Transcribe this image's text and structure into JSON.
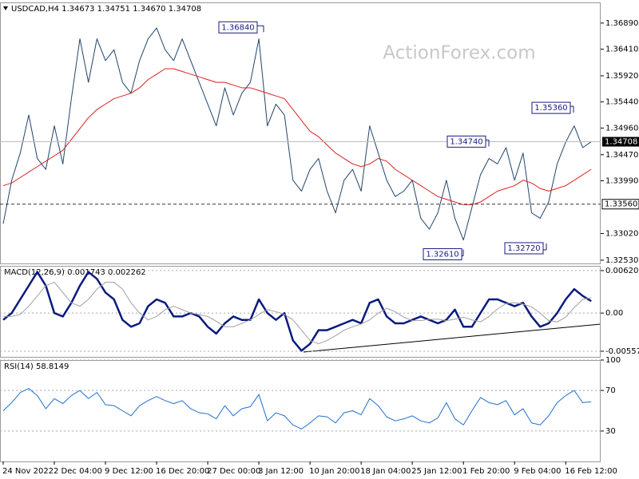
{
  "chart_data": [
    {
      "type": "line",
      "title": "USDCAD,H4  1.34673 1.34751 1.34670 1.34708",
      "watermark": "ActionForex.com",
      "categories": [
        "24 Nov 2022",
        null,
        null,
        null,
        null,
        null,
        "2 Dec 04:00",
        null,
        null,
        null,
        null,
        null,
        "9 Dec 12:00",
        null,
        null,
        null,
        null,
        null,
        "16 Dec 20:00",
        null,
        null,
        null,
        null,
        null,
        "27 Dec 00:00",
        null,
        null,
        null,
        null,
        null,
        "3 Jan 12:00",
        null,
        null,
        null,
        null,
        null,
        "10 Jan 20:00",
        null,
        null,
        null,
        null,
        null,
        "18 Jan 04:00",
        null,
        null,
        null,
        null,
        null,
        "25 Jan 12:00",
        null,
        null,
        null,
        null,
        null,
        "1 Feb 20:00",
        null,
        null,
        null,
        null,
        null,
        "9 Feb 04:00",
        null,
        null,
        null,
        null,
        null,
        "16 Feb 12:00",
        null,
        null,
        null
      ],
      "series": [
        {
          "name": "Close",
          "color": "#23456a",
          "values": [
            1.332,
            1.34,
            1.345,
            1.352,
            1.344,
            1.342,
            1.35,
            1.343,
            1.355,
            1.366,
            1.358,
            1.366,
            1.362,
            1.364,
            1.358,
            1.356,
            1.362,
            1.366,
            1.368,
            1.364,
            1.362,
            1.366,
            1.362,
            1.358,
            1.354,
            1.35,
            1.357,
            1.352,
            1.356,
            1.358,
            1.366,
            1.35,
            1.354,
            1.352,
            1.34,
            1.338,
            1.342,
            1.344,
            1.338,
            1.334,
            1.34,
            1.342,
            1.338,
            1.35,
            1.345,
            1.34,
            1.337,
            1.338,
            1.34,
            1.333,
            1.331,
            1.334,
            1.34,
            1.333,
            1.329,
            1.335,
            1.341,
            1.344,
            1.343,
            1.346,
            1.34,
            1.345,
            1.334,
            1.333,
            1.336,
            1.343,
            1.347,
            1.35,
            1.346,
            1.34708
          ]
        },
        {
          "name": "MA",
          "color": "#e02020",
          "values": [
            1.339,
            1.3395,
            1.3405,
            1.3415,
            1.3425,
            1.3435,
            1.3445,
            1.3455,
            1.3475,
            1.3495,
            1.3515,
            1.353,
            1.354,
            1.355,
            1.3555,
            1.356,
            1.357,
            1.3585,
            1.3595,
            1.3605,
            1.3605,
            1.36,
            1.3595,
            1.359,
            1.3585,
            1.358,
            1.358,
            1.3575,
            1.357,
            1.357,
            1.3565,
            1.356,
            1.3555,
            1.355,
            1.353,
            1.351,
            1.349,
            1.348,
            1.3465,
            1.345,
            1.344,
            1.343,
            1.3425,
            1.343,
            1.344,
            1.3435,
            1.342,
            1.341,
            1.34,
            1.339,
            1.338,
            1.337,
            1.3365,
            1.336,
            1.3355,
            1.3355,
            1.336,
            1.337,
            1.338,
            1.3385,
            1.339,
            1.34,
            1.3395,
            1.3385,
            1.338,
            1.3385,
            1.339,
            1.34,
            1.341,
            1.342
          ]
        }
      ],
      "ylim": [
        1.3247,
        1.3727
      ],
      "yticks": [
        {
          "value": 1.3253,
          "label": "1.32530"
        },
        {
          "value": 1.3302,
          "label": "1.33020"
        },
        {
          "value": 1.3399,
          "label": "1.33990"
        },
        {
          "value": 1.3447,
          "label": "1.34470"
        },
        {
          "value": 1.3496,
          "label": "1.34960"
        },
        {
          "value": 1.3544,
          "label": "1.35440"
        },
        {
          "value": 1.3592,
          "label": "1.35920"
        },
        {
          "value": 1.3641,
          "label": "1.36410"
        },
        {
          "value": 1.3689,
          "label": "1.36890"
        }
      ],
      "grid": false,
      "current_price": {
        "value": 1.34708,
        "label": "1.34708"
      },
      "level": {
        "value": 1.3356,
        "label": "1.33560"
      },
      "annotations": [
        {
          "value": 1.3684,
          "label": "1.36840"
        },
        {
          "value": 1.3474,
          "label": "1.34740"
        },
        {
          "value": 1.3536,
          "label": "1.35360"
        },
        {
          "value": 1.3261,
          "label": "1.32610"
        },
        {
          "value": 1.3272,
          "label": "1.32720"
        }
      ]
    },
    {
      "type": "line",
      "title": "MACD(12,26,9) 0.001743 0.002262",
      "series": [
        {
          "name": "MACD",
          "color": "#0a1a80",
          "values": [
            -0.001,
            0.0,
            0.002,
            0.004,
            0.006,
            0.004,
            0.0,
            -0.0005,
            0.0015,
            0.004,
            0.006,
            0.005,
            0.003,
            0.002,
            -0.001,
            -0.002,
            -0.0015,
            0.001,
            0.002,
            0.0015,
            -0.0005,
            -0.0005,
            0.0,
            -0.0005,
            -0.002,
            -0.003,
            -0.0015,
            -0.0005,
            -0.001,
            -0.001,
            0.002,
            0.0,
            -0.001,
            0.0,
            -0.004,
            -0.0055,
            -0.0045,
            -0.0025,
            -0.0025,
            -0.002,
            -0.0015,
            -0.001,
            -0.0015,
            0.0015,
            0.002,
            -0.0005,
            -0.0015,
            -0.0015,
            -0.001,
            -0.0005,
            -0.001,
            -0.0015,
            -0.001,
            0.0005,
            -0.002,
            -0.002,
            0.0,
            0.002,
            0.002,
            0.0015,
            0.001,
            0.0015,
            -0.0005,
            -0.002,
            -0.0015,
            0.0,
            0.002,
            0.0035,
            0.0025,
            0.001743
          ]
        },
        {
          "name": "Signal",
          "color": "#a0a0a0",
          "values": [
            -0.0005,
            -0.0005,
            -0.0002,
            0.001,
            0.0025,
            0.004,
            0.0045,
            0.003,
            0.0015,
            0.001,
            0.002,
            0.0035,
            0.0045,
            0.0045,
            0.0035,
            0.0015,
            0.0,
            -0.001,
            -0.0005,
            0.0005,
            0.001,
            0.0005,
            0.0,
            -0.0002,
            -0.0005,
            -0.0012,
            -0.002,
            -0.002,
            -0.0015,
            -0.001,
            -0.0002,
            0.0005,
            0.0002,
            -0.0002,
            -0.001,
            -0.0025,
            -0.004,
            -0.0045,
            -0.004,
            -0.0033,
            -0.0025,
            -0.002,
            -0.0016,
            -0.001,
            0.0,
            0.0007,
            0.0002,
            -0.0006,
            -0.0011,
            -0.0011,
            -0.0009,
            -0.0009,
            -0.0011,
            -0.0009,
            -0.0006,
            -0.001,
            -0.0013,
            -0.0005,
            0.0006,
            0.0014,
            0.0015,
            0.0013,
            0.0009,
            0.0,
            -0.0011,
            -0.0013,
            -0.0006,
            0.0008,
            0.002,
            0.002262
          ]
        }
      ],
      "ylim": [
        -0.0064,
        0.0069
      ],
      "yticks": [
        -0.005577,
        {
          "value": 0,
          "label": "0.00"
        },
        0.006208
      ],
      "grid": true
    },
    {
      "type": "line",
      "title": "RSI(14) 58.8149",
      "series": [
        {
          "name": "RSI",
          "color": "#1f6fd0",
          "values": [
            50,
            58,
            68,
            72,
            65,
            52,
            62,
            57,
            65,
            70,
            62,
            68,
            56,
            55,
            50,
            45,
            55,
            60,
            64,
            60,
            57,
            60,
            52,
            48,
            47,
            42,
            55,
            45,
            52,
            54,
            66,
            40,
            48,
            45,
            36,
            32,
            38,
            45,
            44,
            38,
            48,
            50,
            46,
            62,
            55,
            44,
            40,
            42,
            45,
            40,
            38,
            43,
            58,
            42,
            36,
            50,
            63,
            58,
            56,
            60,
            46,
            52,
            38,
            36,
            45,
            58,
            65,
            70,
            58,
            58.8149
          ]
        }
      ],
      "ylim": [
        0,
        100
      ],
      "yticks": [
        30,
        70,
        100
      ],
      "grid": true
    }
  ]
}
